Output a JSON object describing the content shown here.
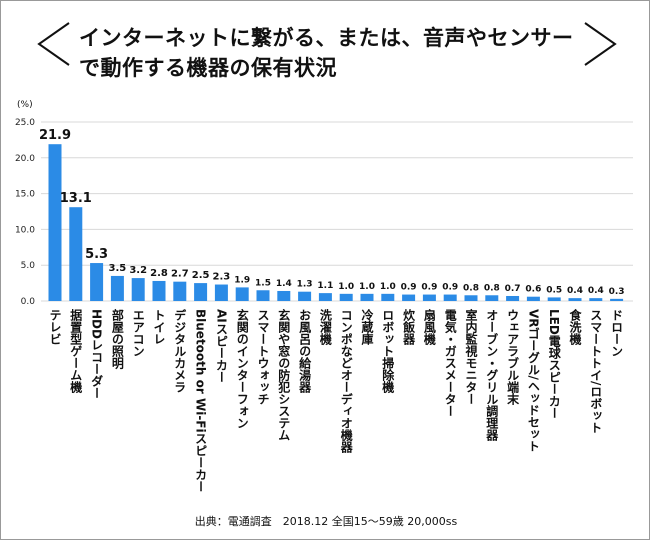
{
  "header": {
    "title": "インターネットに繋がる、または、音声やセンサーで動作する機器の保有状況"
  },
  "footer": {
    "source": "出典：電通調査　2018.12 全国15～59歳 20,000ss"
  },
  "chart_data": {
    "type": "bar",
    "title": "インターネットに繋がる、または、音声やセンサーで動作する機器の保有状況",
    "ylabel": "(%)",
    "ylim": [
      0,
      25
    ],
    "yticks": [
      "0.0",
      "5.0",
      "10.0",
      "15.0",
      "20.0",
      "25.0"
    ],
    "grid": true,
    "bar_color": "#2b8be6",
    "categories": [
      "テレビ",
      "据置型ゲーム機",
      "HDDレコーダー",
      "部屋の照明",
      "エアコン",
      "トイレ",
      "デジタルカメラ",
      "Bluetooth or Wi-Fiスピーカー",
      "AIスピーカー",
      "玄関のインターフォン",
      "スマートウォッチ",
      "玄関や窓の防犯システム",
      "お風呂の給湯器",
      "洗濯機",
      "コンポなどオーディオ機器",
      "冷蔵庫",
      "ロボット掃除機",
      "炊飯器",
      "扇風機",
      "電気・ガスメーター",
      "室内監視モニター",
      "オーブン・グリル調理器",
      "ウェアラブル端末",
      "VRゴーグル/ヘッドセット",
      "LED電球スピーカー",
      "食洗機",
      "スマートトイ/ロボット",
      "ドローン"
    ],
    "values": [
      21.9,
      13.1,
      5.3,
      3.5,
      3.2,
      2.8,
      2.7,
      2.5,
      2.3,
      1.9,
      1.5,
      1.4,
      1.3,
      1.1,
      1.0,
      1.0,
      1.0,
      0.9,
      0.9,
      0.9,
      0.8,
      0.8,
      0.7,
      0.6,
      0.5,
      0.4,
      0.4,
      0.3
    ],
    "value_labels": [
      "21.9",
      "13.1",
      "5.3",
      "3.5",
      "3.2",
      "2.8",
      "2.7",
      "2.5",
      "2.3",
      "1.9",
      "1.5",
      "1.4",
      "1.3",
      "1.1",
      "1.0",
      "1.0",
      "1.0",
      "0.9",
      "0.9",
      "0.9",
      "0.8",
      "0.8",
      "0.7",
      "0.6",
      "0.5",
      "0.4",
      "0.4",
      "0.3"
    ]
  }
}
